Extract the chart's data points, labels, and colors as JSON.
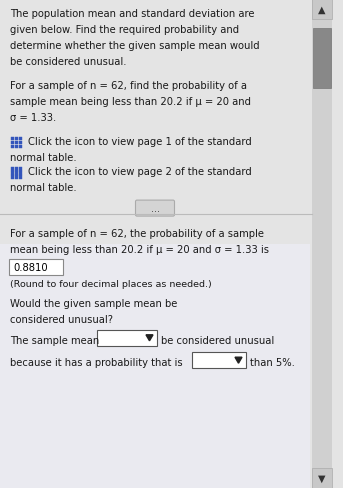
{
  "bg_color_top": "#e4e4e4",
  "bg_color_bottom": "#e8e8f0",
  "divider_color": "#bbbbbb",
  "text_color": "#1a1a1a",
  "icon_color": "#3355bb",
  "scrollbar_track": "#c0c0c0",
  "scrollbar_thumb": "#888888",
  "font_size": 7.2,
  "font_size_small": 6.8,
  "para1_lines": [
    "The population mean and standard deviation are",
    "given below. Find the required probability and",
    "determine whether the given sample mean would",
    "be considered unusual."
  ],
  "para2_lines": [
    "For a sample of n = 62, find the probability of a",
    "sample mean being less than 20.2 if μ = 20 and",
    "σ = 1.33."
  ],
  "icon1_text": "Click the icon to view page 1 of the standard",
  "icon1_text2": "normal table.",
  "icon2_text": "Click the icon to view page 2 of the standard",
  "icon2_text2": "normal table.",
  "bottom_line1": "For a sample of n = 62, the probability of a sample",
  "bottom_line2": "mean being less than 20.2 if μ = 20 and σ = 1.33 is",
  "answer": "0.8810",
  "round_note": "(Round to four decimal places as needed.)",
  "would_q1": "Would the given sample mean be",
  "would_q2": "considered unusual?",
  "dd1_prefix": "The sample mean",
  "dd1_suffix": "be considered unusual",
  "dd2_prefix": "because it has a probability that is",
  "dd2_suffix": "than 5%."
}
